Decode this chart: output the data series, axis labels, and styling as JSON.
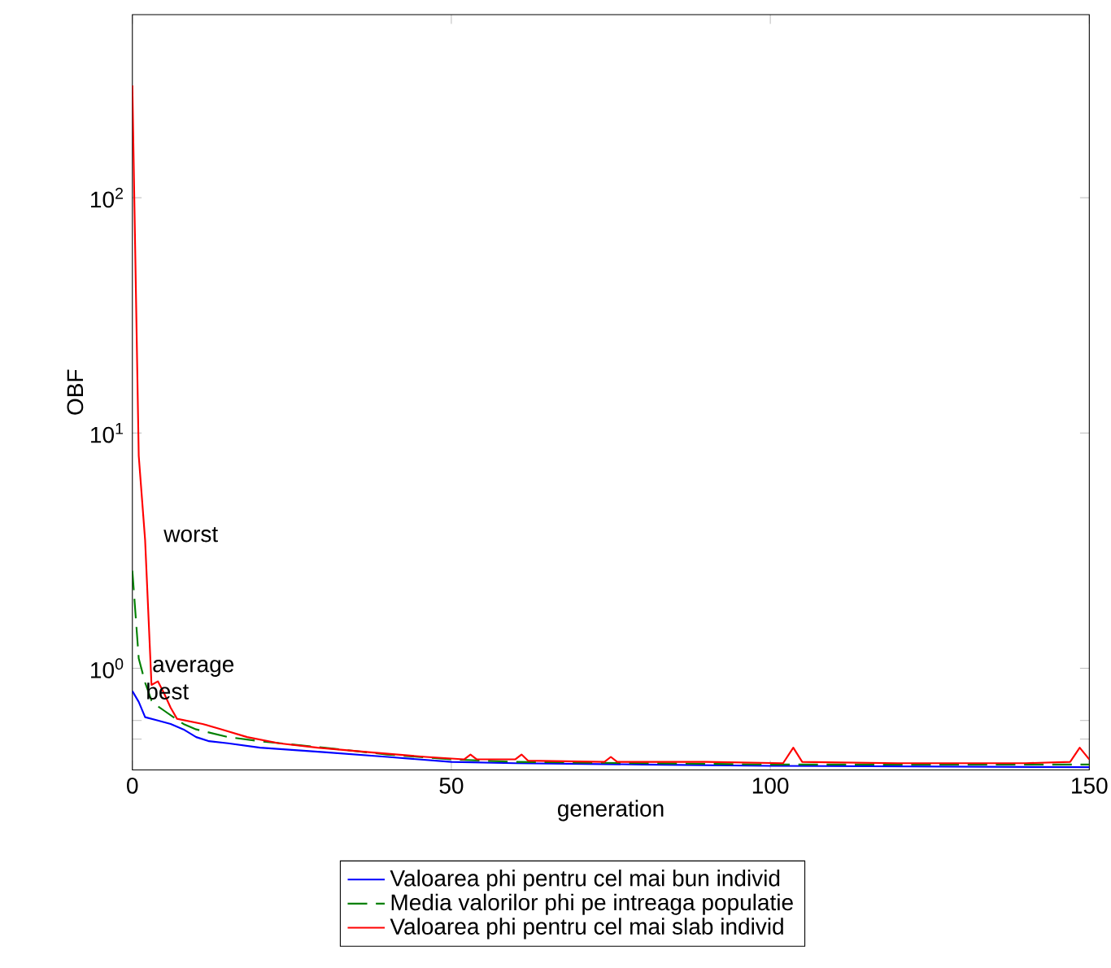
{
  "chart_data": {
    "type": "line",
    "xlabel": "generation",
    "ylabel": "OBF",
    "log": "y",
    "xlim": [
      0,
      150
    ],
    "ylim": [
      0.37,
      600
    ],
    "xticks": [
      0,
      50,
      100,
      150
    ],
    "yticks": [
      {
        "value": 0.5,
        "label": null
      },
      {
        "value": 0.6,
        "label": null
      },
      {
        "value": 1,
        "label": "10$^{0}$"
      },
      {
        "value": 10,
        "label": "10$^{1}$"
      },
      {
        "value": 100,
        "label": "10$^{2}$"
      }
    ],
    "legend": "bottom",
    "grid": false,
    "series": [
      {
        "name": "Valoarea phi pentru cel mai bun individ",
        "color": "#0000ff",
        "line_style": "solid",
        "x": [
          0,
          1,
          2,
          4,
          6,
          8,
          10,
          12,
          15,
          20,
          25,
          30,
          40,
          50,
          60,
          80,
          100,
          150
        ],
        "values": [
          0.8,
          0.72,
          0.62,
          0.6,
          0.58,
          0.55,
          0.51,
          0.49,
          0.48,
          0.46,
          0.45,
          0.44,
          0.42,
          0.4,
          0.395,
          0.39,
          0.385,
          0.38
        ]
      },
      {
        "name": "Media valorilor phi pe intreaga populatie",
        "color": "#008000",
        "line_style": "dashed",
        "x": [
          0,
          1,
          2,
          3,
          4,
          5,
          8,
          10,
          15,
          20,
          30,
          40,
          50,
          60,
          80,
          100,
          150
        ],
        "values": [
          2.6,
          1.1,
          0.87,
          0.73,
          0.69,
          0.66,
          0.58,
          0.55,
          0.51,
          0.49,
          0.46,
          0.43,
          0.41,
          0.4,
          0.395,
          0.39,
          0.39
        ]
      },
      {
        "name": "Valoarea phi pentru cel mai slab individ",
        "color": "#ff0000",
        "line_style": "solid",
        "x": [
          0,
          1,
          2,
          3,
          4,
          5,
          6,
          7,
          11,
          14,
          18,
          23,
          29,
          37,
          46,
          52,
          53,
          54,
          60,
          61,
          62,
          74,
          75,
          76,
          90,
          102,
          103.6,
          105,
          120,
          140,
          147,
          148.5,
          150
        ],
        "values": [
          300,
          8,
          3.5,
          0.85,
          0.88,
          0.78,
          0.68,
          0.61,
          0.58,
          0.55,
          0.51,
          0.48,
          0.46,
          0.44,
          0.42,
          0.41,
          0.43,
          0.41,
          0.41,
          0.43,
          0.405,
          0.4,
          0.42,
          0.4,
          0.4,
          0.395,
          0.46,
          0.4,
          0.395,
          0.395,
          0.4,
          0.46,
          0.41
        ]
      }
    ],
    "annotations": [
      {
        "text": "worst",
        "x": 2.8,
        "y": 3.7
      },
      {
        "text": "average",
        "x": 1,
        "y": 1
      },
      {
        "text": "best",
        "x": 0,
        "y": 0.8
      }
    ]
  }
}
